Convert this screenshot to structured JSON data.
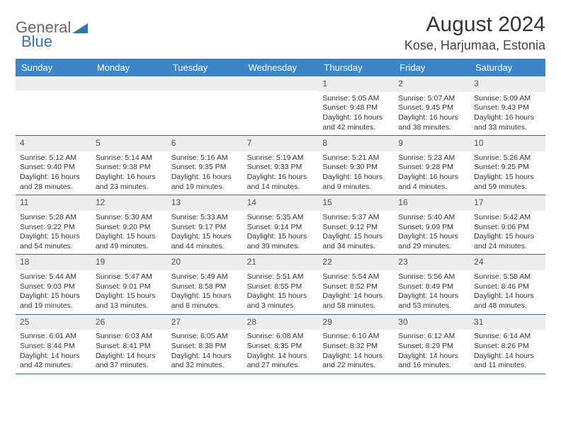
{
  "logo": {
    "part1": "General",
    "part2": "Blue"
  },
  "title": "August 2024",
  "location": "Kose, Harjumaa, Estonia",
  "colors": {
    "header_bg": "#3a86c8",
    "header_text": "#ffffff",
    "daynum_bg": "#ededed",
    "border": "#3a6a9a",
    "logo_blue": "#2a7ab9"
  },
  "day_names": [
    "Sunday",
    "Monday",
    "Tuesday",
    "Wednesday",
    "Thursday",
    "Friday",
    "Saturday"
  ],
  "weeks": [
    [
      null,
      null,
      null,
      null,
      {
        "n": "1",
        "sr": "5:05 AM",
        "ss": "9:48 PM",
        "h": "16",
        "m": "42"
      },
      {
        "n": "2",
        "sr": "5:07 AM",
        "ss": "9:45 PM",
        "h": "16",
        "m": "38"
      },
      {
        "n": "3",
        "sr": "5:09 AM",
        "ss": "9:43 PM",
        "h": "16",
        "m": "33"
      }
    ],
    [
      {
        "n": "4",
        "sr": "5:12 AM",
        "ss": "9:40 PM",
        "h": "16",
        "m": "28"
      },
      {
        "n": "5",
        "sr": "5:14 AM",
        "ss": "9:38 PM",
        "h": "16",
        "m": "23"
      },
      {
        "n": "6",
        "sr": "5:16 AM",
        "ss": "9:35 PM",
        "h": "16",
        "m": "19"
      },
      {
        "n": "7",
        "sr": "5:19 AM",
        "ss": "9:33 PM",
        "h": "16",
        "m": "14"
      },
      {
        "n": "8",
        "sr": "5:21 AM",
        "ss": "9:30 PM",
        "h": "16",
        "m": "9"
      },
      {
        "n": "9",
        "sr": "5:23 AM",
        "ss": "9:28 PM",
        "h": "16",
        "m": "4"
      },
      {
        "n": "10",
        "sr": "5:26 AM",
        "ss": "9:25 PM",
        "h": "15",
        "m": "59"
      }
    ],
    [
      {
        "n": "11",
        "sr": "5:28 AM",
        "ss": "9:22 PM",
        "h": "15",
        "m": "54"
      },
      {
        "n": "12",
        "sr": "5:30 AM",
        "ss": "9:20 PM",
        "h": "15",
        "m": "49"
      },
      {
        "n": "13",
        "sr": "5:33 AM",
        "ss": "9:17 PM",
        "h": "15",
        "m": "44"
      },
      {
        "n": "14",
        "sr": "5:35 AM",
        "ss": "9:14 PM",
        "h": "15",
        "m": "39"
      },
      {
        "n": "15",
        "sr": "5:37 AM",
        "ss": "9:12 PM",
        "h": "15",
        "m": "34"
      },
      {
        "n": "16",
        "sr": "5:40 AM",
        "ss": "9:09 PM",
        "h": "15",
        "m": "29"
      },
      {
        "n": "17",
        "sr": "5:42 AM",
        "ss": "9:06 PM",
        "h": "15",
        "m": "24"
      }
    ],
    [
      {
        "n": "18",
        "sr": "5:44 AM",
        "ss": "9:03 PM",
        "h": "15",
        "m": "19"
      },
      {
        "n": "19",
        "sr": "5:47 AM",
        "ss": "9:01 PM",
        "h": "15",
        "m": "13"
      },
      {
        "n": "20",
        "sr": "5:49 AM",
        "ss": "8:58 PM",
        "h": "15",
        "m": "8"
      },
      {
        "n": "21",
        "sr": "5:51 AM",
        "ss": "8:55 PM",
        "h": "15",
        "m": "3"
      },
      {
        "n": "22",
        "sr": "5:54 AM",
        "ss": "8:52 PM",
        "h": "14",
        "m": "58"
      },
      {
        "n": "23",
        "sr": "5:56 AM",
        "ss": "8:49 PM",
        "h": "14",
        "m": "53"
      },
      {
        "n": "24",
        "sr": "5:58 AM",
        "ss": "8:46 PM",
        "h": "14",
        "m": "48"
      }
    ],
    [
      {
        "n": "25",
        "sr": "6:01 AM",
        "ss": "8:44 PM",
        "h": "14",
        "m": "42"
      },
      {
        "n": "26",
        "sr": "6:03 AM",
        "ss": "8:41 PM",
        "h": "14",
        "m": "37"
      },
      {
        "n": "27",
        "sr": "6:05 AM",
        "ss": "8:38 PM",
        "h": "14",
        "m": "32"
      },
      {
        "n": "28",
        "sr": "6:08 AM",
        "ss": "8:35 PM",
        "h": "14",
        "m": "27"
      },
      {
        "n": "29",
        "sr": "6:10 AM",
        "ss": "8:32 PM",
        "h": "14",
        "m": "22"
      },
      {
        "n": "30",
        "sr": "6:12 AM",
        "ss": "8:29 PM",
        "h": "14",
        "m": "16"
      },
      {
        "n": "31",
        "sr": "6:14 AM",
        "ss": "8:26 PM",
        "h": "14",
        "m": "11"
      }
    ]
  ],
  "labels": {
    "sunrise": "Sunrise: ",
    "sunset": "Sunset: ",
    "daylight1": "Daylight: ",
    "daylight2": " hours and ",
    "daylight3": " minutes."
  }
}
